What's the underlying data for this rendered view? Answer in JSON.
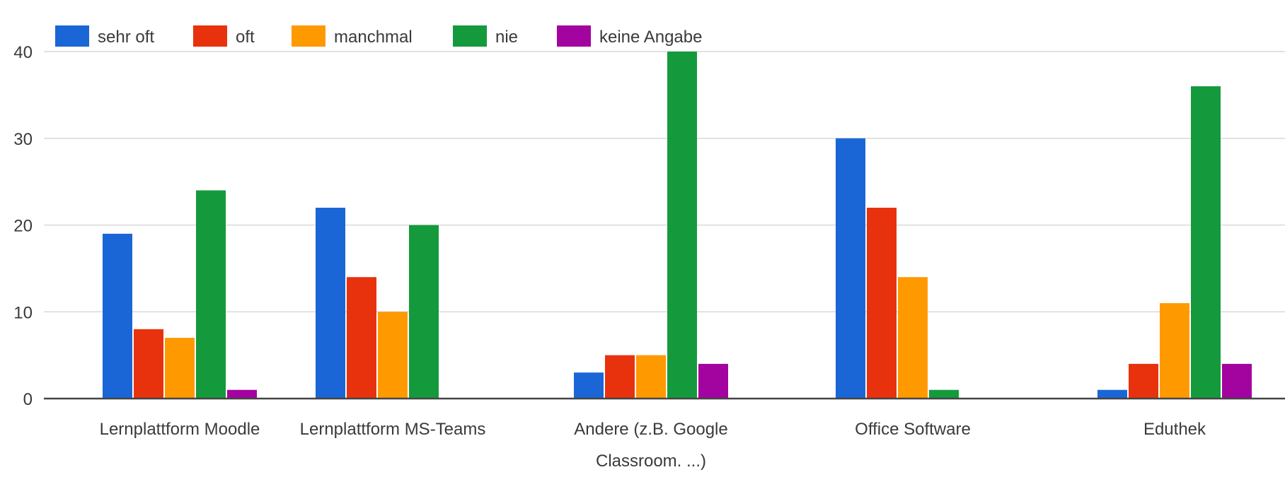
{
  "chart_data": {
    "type": "bar",
    "title": "",
    "xlabel": "",
    "ylabel": "",
    "ylim": [
      0,
      40
    ],
    "yticks": [
      0,
      10,
      20,
      30,
      40
    ],
    "grid": true,
    "legend_position": "top-left",
    "categories": [
      [
        "Lernplattform Moodle"
      ],
      [
        "Lernplattform MS-Teams"
      ],
      [
        "Andere (z.B. Google",
        "Classroom. ...)"
      ],
      [
        "Office Software"
      ],
      [
        "Eduthek"
      ]
    ],
    "series": [
      {
        "name": "sehr oft",
        "color": "#1a66d6",
        "values": [
          19,
          22,
          3,
          30,
          1
        ]
      },
      {
        "name": "oft",
        "color": "#e8320e",
        "values": [
          8,
          14,
          5,
          22,
          4
        ]
      },
      {
        "name": "manchmal",
        "color": "#ff9900",
        "values": [
          7,
          10,
          5,
          14,
          11
        ]
      },
      {
        "name": "nie",
        "color": "#149a3c",
        "values": [
          24,
          20,
          40,
          1,
          36
        ]
      },
      {
        "name": "keine Angabe",
        "color": "#a3039e",
        "values": [
          1,
          0,
          4,
          0,
          4
        ]
      }
    ]
  }
}
